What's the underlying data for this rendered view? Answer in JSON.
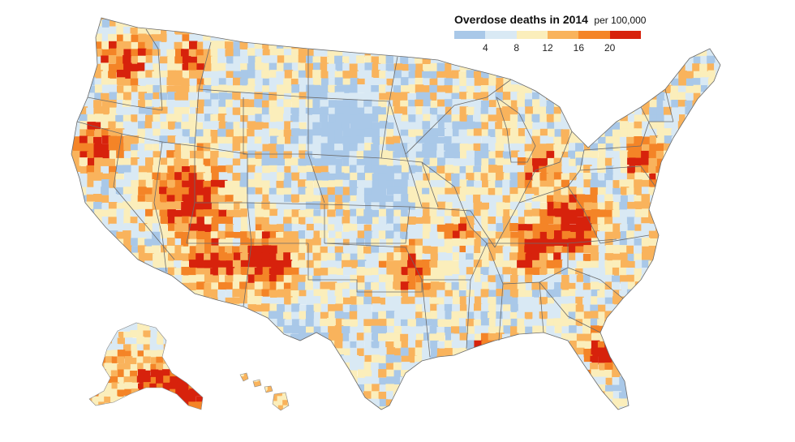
{
  "legend": {
    "title": "Overdose deaths in 2014",
    "unit": "per 100,000",
    "ticks": [
      "4",
      "8",
      "12",
      "16",
      "20"
    ],
    "colors": [
      "#a9c8e8",
      "#d9e9f4",
      "#fbeebb",
      "#f9b35c",
      "#f48427",
      "#d7220c"
    ]
  },
  "map": {
    "background": "#ffffff",
    "border_color": "#6b6b6b"
  }
}
